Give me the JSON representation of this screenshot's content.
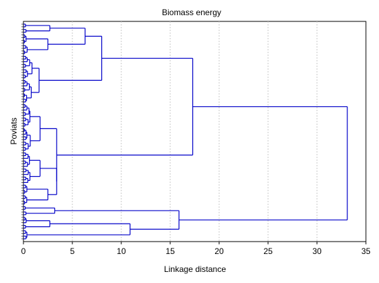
{
  "chart_data": {
    "type": "dendrogram",
    "title": "Biomass energy",
    "xlabel": "Linkage distance",
    "ylabel": "Poviats",
    "xlim": [
      0,
      35
    ],
    "x_ticks": [
      0,
      5,
      10,
      15,
      20,
      25,
      30,
      35
    ],
    "x_tick_labels": [
      "0",
      "5",
      "10",
      "15",
      "20",
      "25",
      "30",
      "35"
    ],
    "grid": "vertical dotted",
    "orientation": "horizontal",
    "leaf_count": 81,
    "link_color": "#0000c8",
    "major_merges": [
      {
        "distance": 2.7,
        "leaves": [
          1,
          4
        ]
      },
      {
        "distance": 2.5,
        "leaves": [
          5,
          12
        ]
      },
      {
        "distance": 6.3,
        "leaves": [
          1,
          12
        ]
      },
      {
        "distance": 1.6,
        "leaves": [
          13,
          30
        ]
      },
      {
        "distance": 8.0,
        "leaves": [
          1,
          30
        ]
      },
      {
        "distance": 1.7,
        "leaves": [
          31,
          48
        ]
      },
      {
        "distance": 1.7,
        "leaves": [
          49,
          60
        ]
      },
      {
        "distance": 2.5,
        "leaves": [
          61,
          68
        ]
      },
      {
        "distance": 3.4,
        "leaves": [
          49,
          68
        ]
      },
      {
        "distance": 3.4,
        "leaves": [
          31,
          68
        ]
      },
      {
        "distance": 17.3,
        "leaves": [
          1,
          68
        ]
      },
      {
        "distance": 3.2,
        "leaves": [
          69,
          72
        ]
      },
      {
        "distance": 2.7,
        "leaves": [
          73,
          77
        ]
      },
      {
        "distance": 10.9,
        "leaves": [
          73,
          81
        ]
      },
      {
        "distance": 15.9,
        "leaves": [
          69,
          81
        ]
      },
      {
        "distance": 33.1,
        "leaves": [
          1,
          81
        ]
      }
    ]
  }
}
